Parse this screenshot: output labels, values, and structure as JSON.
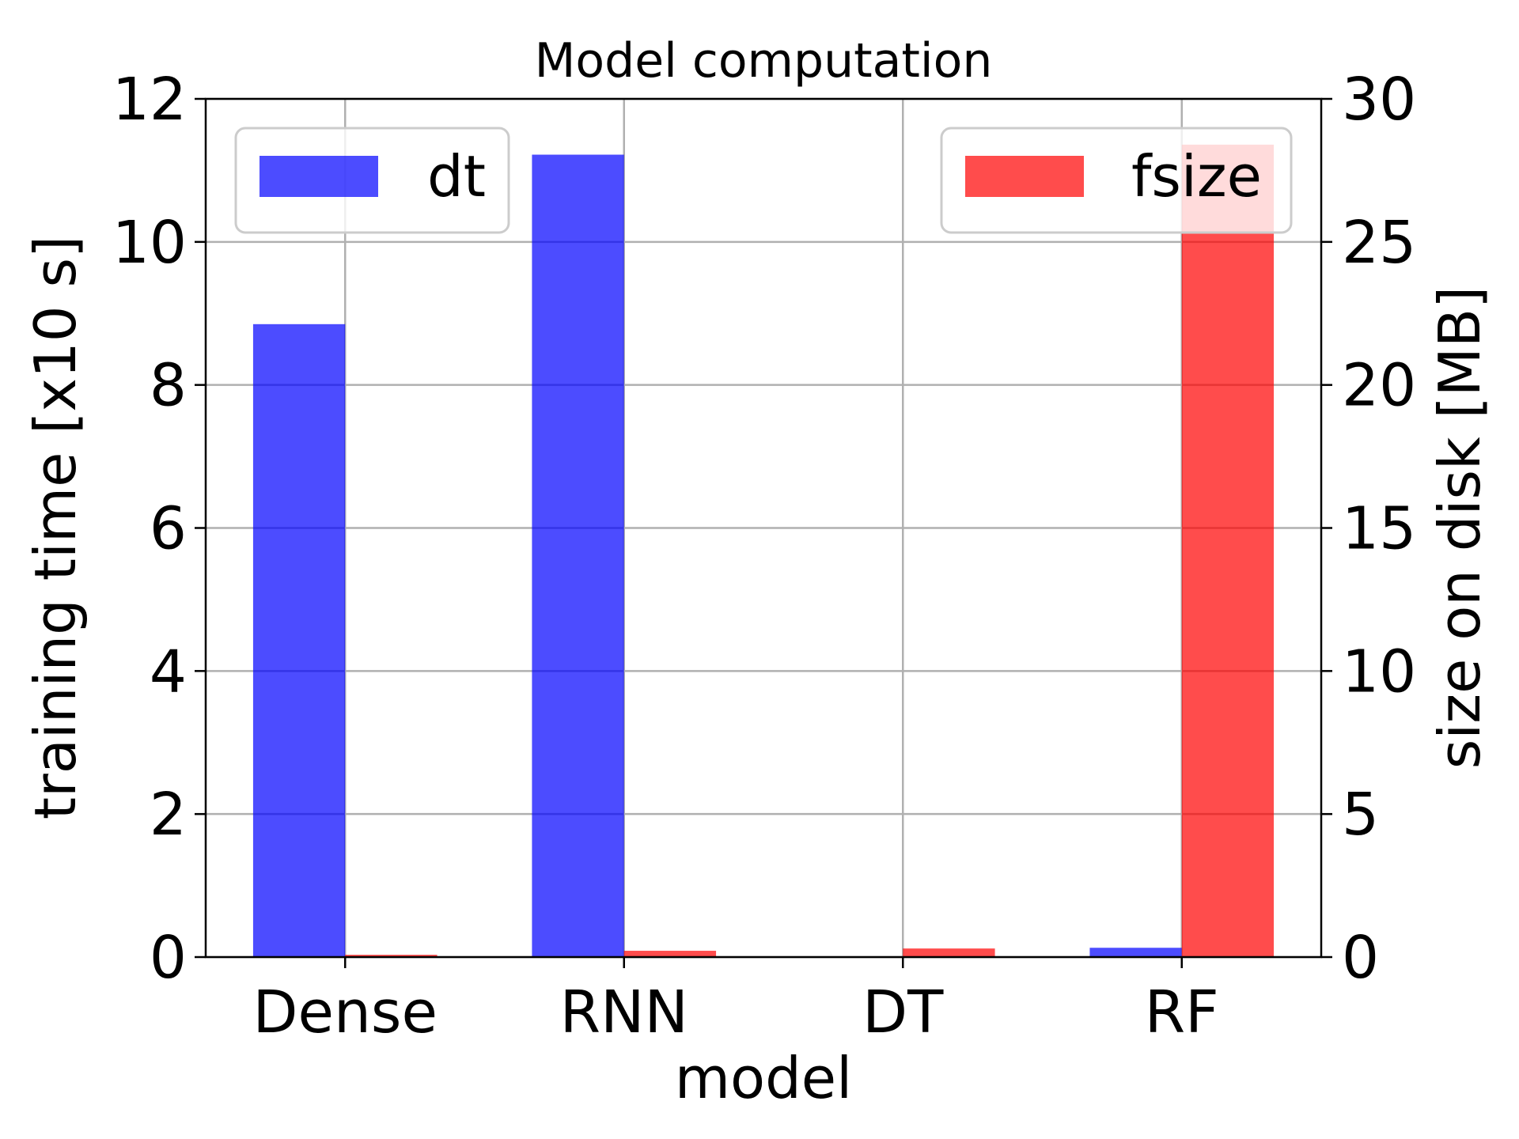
{
  "chart_data": {
    "type": "bar",
    "title": "Model computation",
    "xlabel": "model",
    "categories": [
      "Dense",
      "RNN",
      "DT",
      "RF"
    ],
    "y_left": {
      "label": "training time [x10 s]",
      "ylim": [
        0,
        12
      ],
      "ticks": [
        "0",
        "2",
        "4",
        "6",
        "8",
        "10",
        "12"
      ]
    },
    "y_right": {
      "label": "size on disk [MB]",
      "ylim": [
        0,
        30
      ],
      "ticks": [
        "0",
        "5",
        "10",
        "15",
        "20",
        "25",
        "30"
      ]
    },
    "series": [
      {
        "name": "dt",
        "axis": "left",
        "color": "#0000ff",
        "opacity": 0.7,
        "values": [
          8.85,
          11.22,
          0.0,
          0.13
        ]
      },
      {
        "name": "fsize",
        "axis": "right",
        "color": "#ff0000",
        "opacity": 0.7,
        "values": [
          0.08,
          0.22,
          0.3,
          28.4
        ]
      }
    ],
    "grid": true,
    "legend": {
      "dt": "upper-left",
      "fsize": "upper-right"
    }
  }
}
